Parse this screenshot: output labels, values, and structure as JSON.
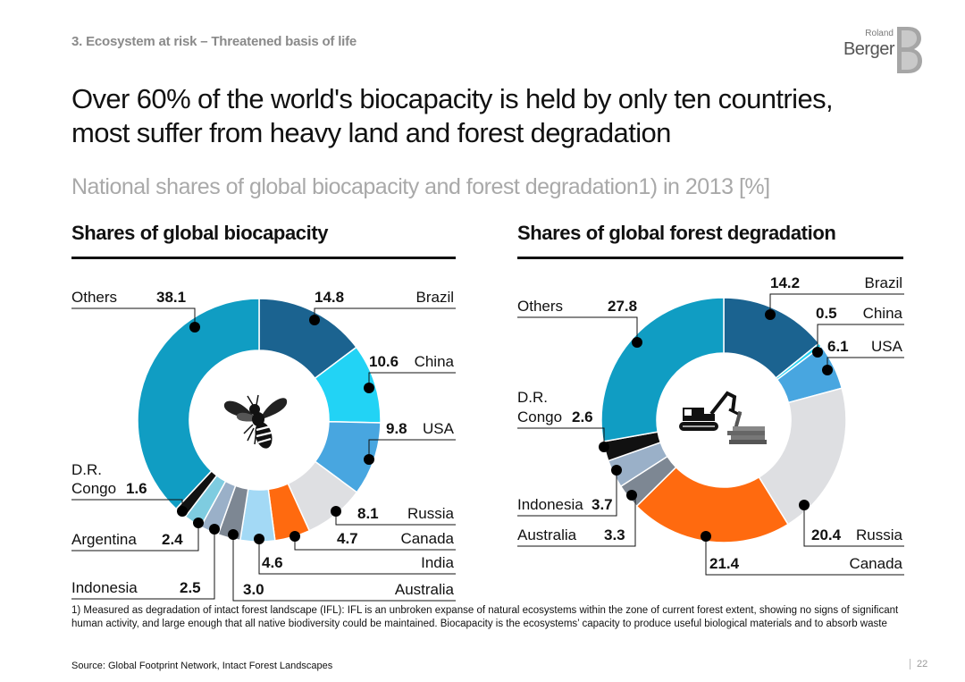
{
  "header": {
    "section_label": "3. Ecosystem at risk – Threatened basis of life",
    "title": "Over 60% of the world's biocapacity is held by only ten countries, most suffer from heavy land and forest degradation",
    "subtitle": "National shares of global biocapacity and forest degradation1) in 2013 [%]"
  },
  "logo": {
    "line1": "Roland",
    "line2": "Berger"
  },
  "chart_data": [
    {
      "type": "pie",
      "title": "Shares of global biocapacity",
      "center_icon": "bee-icon",
      "slices": [
        {
          "label": "Brazil",
          "value": 14.8,
          "value_label": "14.8",
          "color": "#1b6390"
        },
        {
          "label": "China",
          "value": 10.6,
          "value_label": "10.6",
          "color": "#22d3f5"
        },
        {
          "label": "USA",
          "value": 9.8,
          "value_label": "9.8",
          "color": "#48a6e0"
        },
        {
          "label": "Russia",
          "value": 8.1,
          "value_label": "8.1",
          "color": "#dedfe2"
        },
        {
          "label": "Canada",
          "value": 4.7,
          "value_label": "4.7",
          "color": "#ff6a0f"
        },
        {
          "label": "India",
          "value": 4.6,
          "value_label": "4.6",
          "color": "#a3d9f5"
        },
        {
          "label": "Australia",
          "value": 3.0,
          "value_label": "3.0",
          "color": "#7d8793"
        },
        {
          "label": "Indonesia",
          "value": 2.5,
          "value_label": "2.5",
          "color": "#9ab0c8"
        },
        {
          "label": "Argentina",
          "value": 2.4,
          "value_label": "2.4",
          "color": "#7ecce0"
        },
        {
          "label": "D.R. Congo",
          "value": 1.6,
          "value_label": "1.6",
          "color": "#111111"
        },
        {
          "label": "Others",
          "value": 38.1,
          "value_label": "38.1",
          "color": "#109dc3"
        }
      ]
    },
    {
      "type": "pie",
      "title": "Shares of global forest degradation",
      "center_icon": "excavator-icon",
      "slices": [
        {
          "label": "Brazil",
          "value": 14.2,
          "value_label": "14.2",
          "color": "#1b6390"
        },
        {
          "label": "China",
          "value": 0.5,
          "value_label": "0.5",
          "color": "#22d3f5"
        },
        {
          "label": "USA",
          "value": 6.1,
          "value_label": "6.1",
          "color": "#48a6e0"
        },
        {
          "label": "Russia",
          "value": 20.4,
          "value_label": "20.4",
          "color": "#dedfe2"
        },
        {
          "label": "Canada",
          "value": 21.4,
          "value_label": "21.4",
          "color": "#ff6a0f"
        },
        {
          "label": "Australia",
          "value": 3.3,
          "value_label": "3.3",
          "color": "#7d8793"
        },
        {
          "label": "Indonesia",
          "value": 3.7,
          "value_label": "3.7",
          "color": "#9ab0c8"
        },
        {
          "label": "D.R. Congo",
          "value": 2.6,
          "value_label": "2.6",
          "color": "#111111"
        },
        {
          "label": "Others",
          "value": 27.8,
          "value_label": "27.8",
          "color": "#109dc3"
        }
      ]
    }
  ],
  "footer": {
    "footnote": "1) Measured as degradation of intact forest landscape (IFL): IFL is an unbroken expanse of natural ecosystems within the zone of current forest extent, showing no signs of significant human activity, and large enough that all native biodiversity could be maintained. Biocapacity is the ecosystems’ capacity to produce useful biological materials and to absorb waste",
    "source": "Source: Global Footprint Network, Intact Forest Landscapes",
    "page_number": "22"
  }
}
